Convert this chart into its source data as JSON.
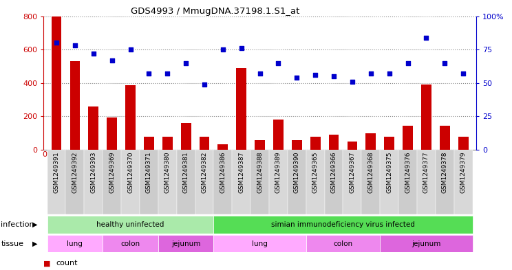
{
  "title": "GDS4993 / MmugDNA.37198.1.S1_at",
  "samples": [
    "GSM1249391",
    "GSM1249392",
    "GSM1249393",
    "GSM1249369",
    "GSM1249370",
    "GSM1249371",
    "GSM1249380",
    "GSM1249381",
    "GSM1249382",
    "GSM1249386",
    "GSM1249387",
    "GSM1249388",
    "GSM1249389",
    "GSM1249390",
    "GSM1249365",
    "GSM1249366",
    "GSM1249367",
    "GSM1249368",
    "GSM1249375",
    "GSM1249376",
    "GSM1249377",
    "GSM1249378",
    "GSM1249379"
  ],
  "counts": [
    800,
    530,
    260,
    195,
    385,
    80,
    80,
    160,
    80,
    35,
    490,
    60,
    180,
    60,
    80,
    90,
    50,
    100,
    80,
    145,
    390,
    145,
    80
  ],
  "percentiles": [
    80,
    78,
    72,
    67,
    75,
    57,
    57,
    65,
    49,
    75,
    76,
    57,
    65,
    54,
    56,
    55,
    51,
    57,
    57,
    65,
    84,
    65,
    57
  ],
  "bar_color": "#cc0000",
  "dot_color": "#0000cc",
  "ylim_left": [
    0,
    800
  ],
  "ylim_right": [
    0,
    100
  ],
  "yticks_left": [
    0,
    200,
    400,
    600,
    800
  ],
  "yticks_right": [
    0,
    25,
    50,
    75,
    100
  ],
  "ytick_right_labels": [
    "0",
    "25",
    "50",
    "75",
    "100%"
  ],
  "infection_groups": [
    {
      "label": "healthy uninfected",
      "start": 0,
      "end": 9,
      "color": "#aaeaaa"
    },
    {
      "label": "simian immunodeficiency virus infected",
      "start": 9,
      "end": 23,
      "color": "#55dd55"
    }
  ],
  "tissue_colors": {
    "lung": "#ffaaff",
    "colon": "#ee88ee",
    "jejunum": "#dd66dd"
  },
  "tissue_groups": [
    {
      "label": "lung",
      "start": 0,
      "end": 3
    },
    {
      "label": "colon",
      "start": 3,
      "end": 6
    },
    {
      "label": "jejunum",
      "start": 6,
      "end": 9
    },
    {
      "label": "lung",
      "start": 9,
      "end": 14
    },
    {
      "label": "colon",
      "start": 14,
      "end": 18
    },
    {
      "label": "jejunum",
      "start": 18,
      "end": 23
    }
  ],
  "bg_color": "#ffffff",
  "plot_area_bg": "#ffffff",
  "grid_color": "#888888",
  "xlabel_color": "#cc0000",
  "ylabel_right_color": "#0000cc"
}
